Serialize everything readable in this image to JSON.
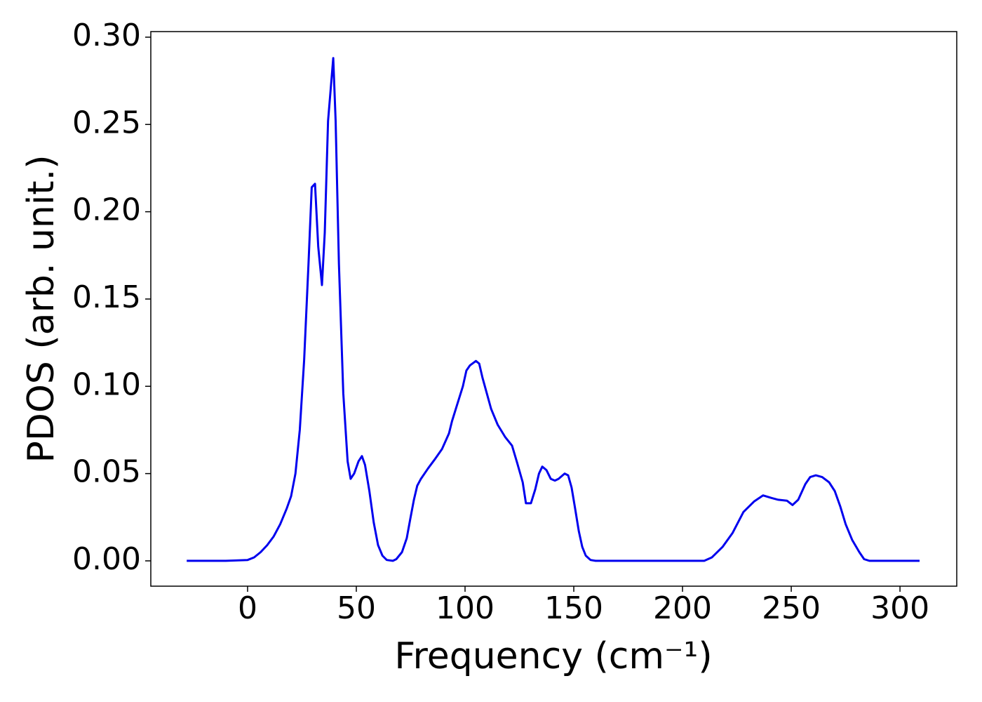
{
  "chart_data": {
    "type": "line",
    "xlabel": "Frequency (cm⁻¹)",
    "ylabel": "PDOS (arb. unit.)",
    "x": [
      -28,
      -10,
      0,
      3,
      6,
      9,
      12,
      15,
      18,
      20,
      22,
      24,
      26,
      28,
      29.5,
      31,
      32.5,
      34.2,
      35.5,
      37,
      39.4,
      40.5,
      42,
      44,
      46,
      47.4,
      49,
      51,
      52.6,
      54,
      56,
      58,
      60,
      62,
      64,
      66.8,
      68.4,
      71,
      73.2,
      74.8,
      76.5,
      78,
      79.7,
      83,
      86,
      89.4,
      92.6,
      94,
      96,
      99,
      100.6,
      102.3,
      105,
      106.5,
      108,
      110,
      112,
      115,
      118.4,
      121.6,
      124,
      126.5,
      128,
      130.3,
      132.3,
      134,
      135.5,
      137.4,
      139.4,
      141.3,
      143,
      145.8,
      147.4,
      149,
      150.6,
      152.3,
      153.9,
      155.5,
      157.7,
      160,
      210,
      213.5,
      218.4,
      223,
      228,
      232.9,
      237,
      241,
      244,
      248,
      250.6,
      253.2,
      256.5,
      258.7,
      261.3,
      264.2,
      267.4,
      270,
      272.6,
      275,
      278,
      281.3,
      283.5,
      286,
      309
    ],
    "series": [
      {
        "name": "PDOS",
        "color": "#0000ee",
        "values": [
          0,
          0,
          0.0005,
          0.002,
          0.005,
          0.009,
          0.014,
          0.021,
          0.03,
          0.037,
          0.05,
          0.075,
          0.115,
          0.17,
          0.214,
          0.216,
          0.18,
          0.158,
          0.188,
          0.252,
          0.288,
          0.252,
          0.17,
          0.096,
          0.057,
          0.047,
          0.05,
          0.057,
          0.06,
          0.055,
          0.04,
          0.022,
          0.009,
          0.003,
          0.0005,
          0,
          0.001,
          0.005,
          0.013,
          0.024,
          0.035,
          0.043,
          0.047,
          0.053,
          0.058,
          0.064,
          0.073,
          0.08,
          0.088,
          0.1,
          0.109,
          0.112,
          0.1145,
          0.113,
          0.105,
          0.096,
          0.087,
          0.078,
          0.071,
          0.066,
          0.056,
          0.045,
          0.033,
          0.033,
          0.041,
          0.05,
          0.054,
          0.052,
          0.047,
          0.046,
          0.047,
          0.05,
          0.049,
          0.042,
          0.03,
          0.017,
          0.008,
          0.003,
          0.0005,
          0,
          0,
          0.002,
          0.008,
          0.016,
          0.028,
          0.034,
          0.0375,
          0.036,
          0.035,
          0.0345,
          0.032,
          0.035,
          0.044,
          0.048,
          0.049,
          0.048,
          0.045,
          0.04,
          0.031,
          0.021,
          0.012,
          0.005,
          0.001,
          0,
          0
        ]
      }
    ],
    "xlim": [
      -44.5,
      326.1
    ],
    "ylim": [
      -0.0145,
      0.3032
    ],
    "xticks": [
      0,
      50,
      100,
      150,
      200,
      250,
      300
    ],
    "yticks": [
      {
        "value": 0,
        "label": "0.00"
      },
      {
        "value": 0.05,
        "label": "0.05"
      },
      {
        "value": 0.1,
        "label": "0.10"
      },
      {
        "value": 0.15,
        "label": "0.15"
      },
      {
        "value": 0.2,
        "label": "0.20"
      },
      {
        "value": 0.25,
        "label": "0.25"
      },
      {
        "value": 0.3,
        "label": "0.30"
      }
    ],
    "grid": false
  }
}
